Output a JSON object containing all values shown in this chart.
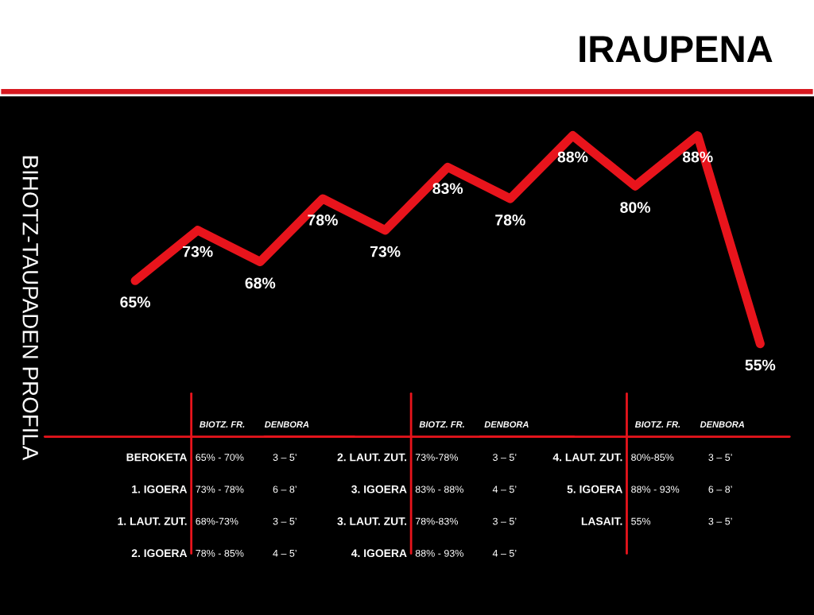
{
  "chart_data": {
    "type": "line",
    "title": "IRAUPENA",
    "ylabel": "BIHOTZ-TAUPADEN PROFILA",
    "categories": [
      null,
      null,
      null,
      null,
      null,
      null,
      null,
      null,
      null,
      null,
      null
    ],
    "series": [
      {
        "color": "#e8141c",
        "values": [
          65,
          73,
          68,
          78,
          73,
          83,
          78,
          88,
          80,
          88,
          55
        ],
        "value_labels": [
          "65%",
          "73%",
          "68%",
          "78%",
          "73%",
          "83%",
          "78%",
          "88%",
          "80%",
          "88%",
          "55%"
        ]
      }
    ],
    "grid": false,
    "marker": "none",
    "line_style": "solid",
    "annotations": [
      "BIOTZ. FR.",
      "DENBORA",
      "BEROKETA",
      "65% - 70%",
      "3 – 5’",
      "1. IGOERA",
      "73% - 78%",
      "6 – 8’",
      "1. LAUT. ZUT.",
      "68%-73%",
      "3 – 5’",
      "2. IGOERA",
      "78% - 85%",
      "4 – 5’",
      "BIOTZ. FR.",
      "DENBORA",
      "2. LAUT. ZUT.",
      "73%-78%",
      "3 – 5’",
      "3. IGOERA",
      "83% - 88%",
      "4 – 5’",
      "3. LAUT. ZUT.",
      "78%-83%",
      "3 – 5’",
      "4. IGOERA",
      "88% - 93%",
      "4 – 5’",
      "BIOTZ. FR.",
      "DENBORA",
      "4. LAUT. ZUT.",
      "80%-85%",
      "3 – 5’",
      "5. IGOERA",
      "88% - 93%",
      "6 – 8’",
      "LASAIT.",
      "55%",
      "3 – 5’"
    ]
  }
}
